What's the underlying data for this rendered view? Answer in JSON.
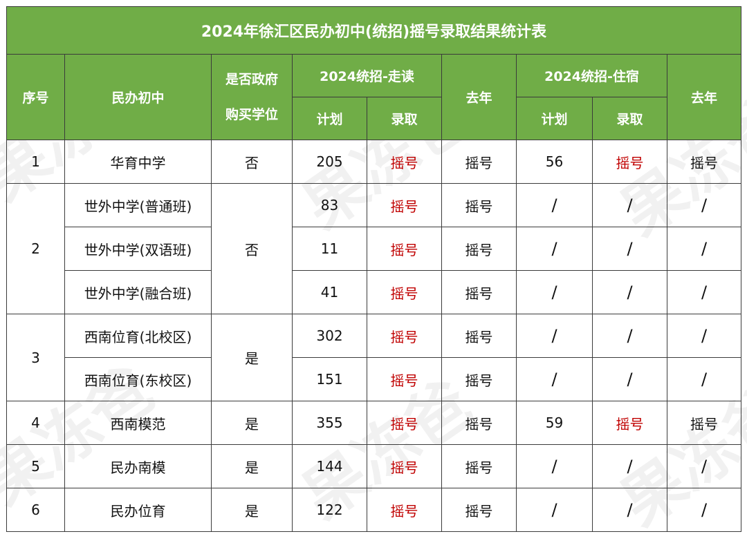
{
  "title": "2024年徐汇区民办初中(统招)摇号录取结果统计表",
  "headers": {
    "seq": "序号",
    "school": "民办初中",
    "gov_line1": "是否政府",
    "gov_line2": "购买学位",
    "day_group": "2024统招-走读",
    "day_plan": "计划",
    "day_admit": "录取",
    "day_last": "去年",
    "board_group": "2024统招-住宿",
    "board_plan": "计划",
    "board_admit": "录取",
    "board_last": "去年"
  },
  "rows": [
    {
      "seq": "1",
      "school": "华育中学",
      "gov": "否",
      "plan": "205",
      "admit": "摇号",
      "last": "摇号",
      "bplan": "56",
      "badmit": "摇号",
      "blast": "摇号"
    },
    {
      "seq": "2",
      "school": "世外中学(普通班)",
      "gov": "否",
      "plan": "83",
      "admit": "摇号",
      "last": "摇号",
      "bplan": "/",
      "badmit": "/",
      "blast": "/"
    },
    {
      "school": "世外中学(双语班)",
      "plan": "11",
      "admit": "摇号",
      "last": "摇号",
      "bplan": "/",
      "badmit": "/",
      "blast": "/"
    },
    {
      "school": "世外中学(融合班)",
      "plan": "41",
      "admit": "摇号",
      "last": "摇号",
      "bplan": "/",
      "badmit": "/",
      "blast": "/"
    },
    {
      "seq": "3",
      "school": "西南位育(北校区)",
      "gov": "是",
      "plan": "302",
      "admit": "摇号",
      "last": "摇号",
      "bplan": "/",
      "badmit": "/",
      "blast": "/"
    },
    {
      "school": "西南位育(东校区)",
      "plan": "151",
      "admit": "摇号",
      "last": "摇号",
      "bplan": "/",
      "badmit": "/",
      "blast": "/"
    },
    {
      "seq": "4",
      "school": "西南模范",
      "gov": "是",
      "plan": "355",
      "admit": "摇号",
      "last": "摇号",
      "bplan": "59",
      "badmit": "摇号",
      "blast": "摇号"
    },
    {
      "seq": "5",
      "school": "民办南模",
      "gov": "是",
      "plan": "144",
      "admit": "摇号",
      "last": "摇号",
      "bplan": "/",
      "badmit": "/",
      "blast": "/"
    },
    {
      "seq": "6",
      "school": "民办位育",
      "gov": "是",
      "plan": "122",
      "admit": "摇号",
      "last": "摇号",
      "bplan": "/",
      "badmit": "/",
      "blast": "/"
    }
  ],
  "watermark": "果冻爸",
  "colors": {
    "header_bg": "#70ad47",
    "header_text": "#ffffff",
    "lottery_red": "#c00000"
  }
}
